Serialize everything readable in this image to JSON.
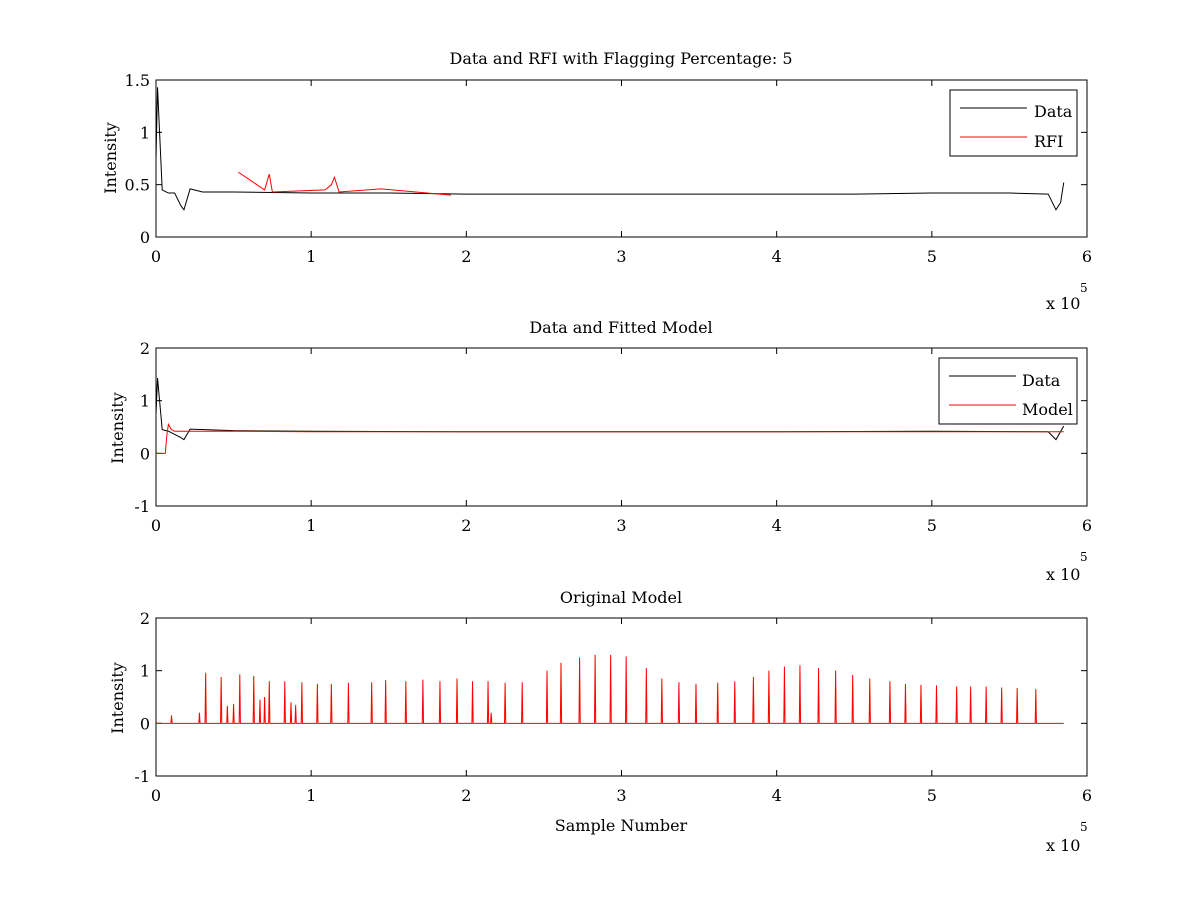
{
  "chart_data": [
    {
      "type": "line",
      "title": "Data and RFI with Flagging Percentage: 5",
      "xlabel": "",
      "ylabel": "Intensity",
      "xlim": [
        0,
        6
      ],
      "ylim": [
        0,
        1.5
      ],
      "x_multiplier": "x 10",
      "x_multiplier_exponent": "5",
      "xticks": [
        "0",
        "1",
        "2",
        "3",
        "4",
        "5",
        "6"
      ],
      "yticks": [
        "0",
        "0.5",
        "1",
        "1.5"
      ],
      "legend": {
        "location": "top-right"
      },
      "series": [
        {
          "name": "Data",
          "color": "#000000",
          "x": [
            0,
            0.01,
            0.02,
            0.04,
            0.08,
            0.12,
            0.16,
            0.18,
            0.22,
            0.3,
            0.5,
            1.0,
            1.5,
            2.0,
            2.5,
            3.0,
            3.5,
            4.0,
            4.5,
            5.0,
            5.5,
            5.75,
            5.8,
            5.83,
            5.85
          ],
          "y": [
            0.75,
            1.43,
            1.1,
            0.45,
            0.42,
            0.42,
            0.3,
            0.26,
            0.46,
            0.43,
            0.43,
            0.42,
            0.42,
            0.41,
            0.41,
            0.41,
            0.41,
            0.41,
            0.41,
            0.42,
            0.42,
            0.41,
            0.26,
            0.33,
            0.52
          ]
        },
        {
          "name": "RFI",
          "color": "#ff0000",
          "x": [
            0.53,
            0.7,
            0.72,
            0.73,
            0.75,
            1.09,
            1.13,
            1.15,
            1.18,
            1.45,
            1.9
          ],
          "y": [
            0.62,
            0.45,
            0.55,
            0.6,
            0.43,
            0.45,
            0.5,
            0.57,
            0.43,
            0.46,
            0.4
          ]
        }
      ]
    },
    {
      "type": "line",
      "title": "Data and Fitted Model",
      "xlabel": "",
      "ylabel": "Intensity",
      "xlim": [
        0,
        6
      ],
      "ylim": [
        -1,
        2
      ],
      "x_multiplier": "x 10",
      "x_multiplier_exponent": "5",
      "xticks": [
        "0",
        "1",
        "2",
        "3",
        "4",
        "5",
        "6"
      ],
      "yticks": [
        "-1",
        "0",
        "1",
        "2"
      ],
      "legend": {
        "location": "top-right"
      },
      "series": [
        {
          "name": "Data",
          "color": "#000000",
          "x": [
            0,
            0.01,
            0.02,
            0.04,
            0.08,
            0.16,
            0.18,
            0.22,
            0.5,
            1.0,
            2.0,
            3.0,
            4.0,
            5.0,
            5.75,
            5.8,
            5.85
          ],
          "y": [
            0.75,
            1.43,
            1.1,
            0.45,
            0.42,
            0.3,
            0.26,
            0.46,
            0.43,
            0.42,
            0.41,
            0.41,
            0.41,
            0.42,
            0.41,
            0.26,
            0.52
          ]
        },
        {
          "name": "Model",
          "color": "#ff0000",
          "x": [
            0,
            0.06,
            0.07,
            0.08,
            0.1,
            0.12,
            0.5,
            1.0,
            2.0,
            3.0,
            4.0,
            5.0,
            5.8,
            5.85
          ],
          "y": [
            0.0,
            0.0,
            0.35,
            0.55,
            0.45,
            0.42,
            0.42,
            0.41,
            0.41,
            0.41,
            0.41,
            0.41,
            0.41,
            0.41
          ]
        }
      ]
    },
    {
      "type": "line",
      "title": "Original Model",
      "xlabel": "Sample Number",
      "ylabel": "Intensity",
      "xlim": [
        0,
        6
      ],
      "ylim": [
        -1,
        2
      ],
      "x_multiplier": "x 10",
      "x_multiplier_exponent": "5",
      "xticks": [
        "0",
        "1",
        "2",
        "3",
        "4",
        "5",
        "6"
      ],
      "yticks": [
        "-1",
        "0",
        "1",
        "2"
      ],
      "series": [
        {
          "color": "#ff0000",
          "peaks_x": [
            0.1,
            0.28,
            0.32,
            0.42,
            0.46,
            0.5,
            0.54,
            0.63,
            0.67,
            0.7,
            0.73,
            0.83,
            0.87,
            0.9,
            0.94,
            1.04,
            1.13,
            1.24,
            1.39,
            1.48,
            1.61,
            1.72,
            1.83,
            1.94,
            2.04,
            2.14,
            2.16,
            2.25,
            2.36,
            2.52,
            2.61,
            2.73,
            2.83,
            2.93,
            3.03,
            3.16,
            3.26,
            3.37,
            3.48,
            3.62,
            3.73,
            3.85,
            3.95,
            4.05,
            4.15,
            4.27,
            4.38,
            4.49,
            4.6,
            4.73,
            4.83,
            4.93,
            5.03,
            5.16,
            5.25,
            5.35,
            5.45,
            5.55,
            5.67
          ],
          "peaks_y": [
            0.15,
            0.2,
            0.96,
            0.88,
            0.33,
            0.37,
            0.93,
            0.9,
            0.45,
            0.5,
            0.8,
            0.8,
            0.4,
            0.35,
            0.78,
            0.75,
            0.75,
            0.77,
            0.78,
            0.82,
            0.8,
            0.83,
            0.8,
            0.85,
            0.8,
            0.8,
            0.2,
            0.77,
            0.78,
            1.0,
            1.15,
            1.25,
            1.3,
            1.3,
            1.27,
            1.05,
            0.85,
            0.78,
            0.75,
            0.77,
            0.8,
            0.88,
            1.0,
            1.08,
            1.1,
            1.05,
            1.0,
            0.92,
            0.85,
            0.8,
            0.75,
            0.73,
            0.72,
            0.7,
            0.7,
            0.7,
            0.68,
            0.67,
            0.65
          ],
          "baseline": 0.0,
          "x_end": 5.85
        }
      ]
    }
  ]
}
